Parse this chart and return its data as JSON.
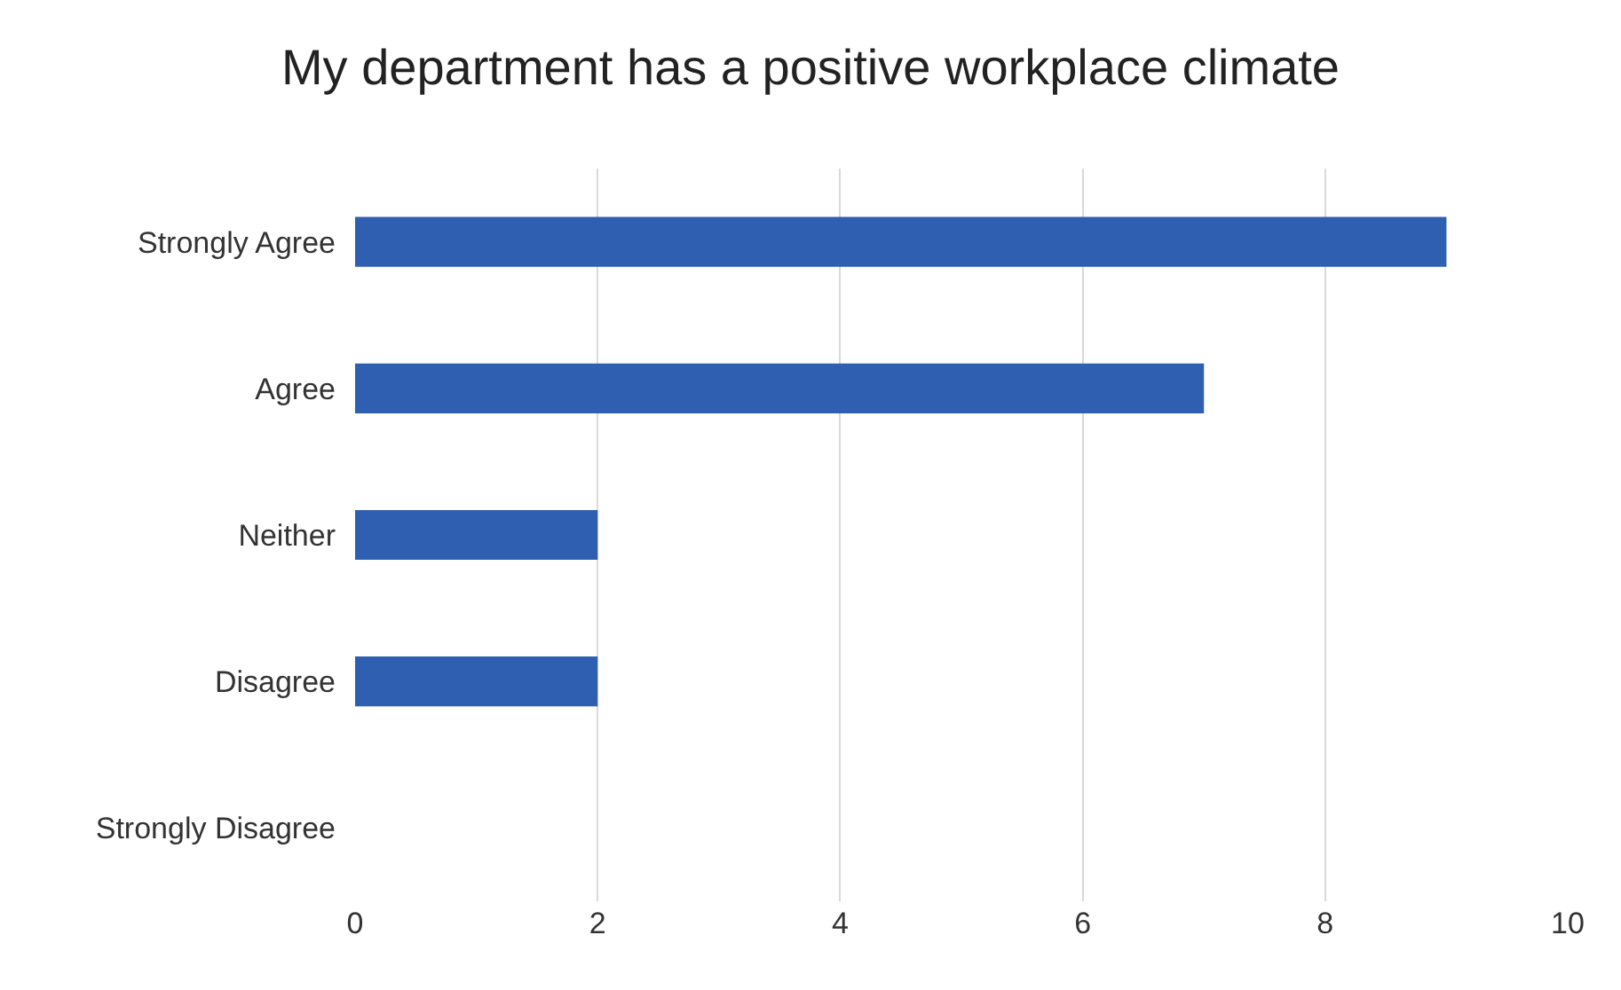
{
  "chart_data": {
    "type": "bar",
    "orientation": "horizontal",
    "title": "My department has a positive workplace climate",
    "categories": [
      "Strongly Agree",
      "Agree",
      "Neither",
      "Disagree",
      "Strongly Disagree"
    ],
    "values": [
      9,
      7,
      2,
      2,
      0
    ],
    "color": "#2e5fb0",
    "xlim": [
      0,
      10
    ],
    "xticks": [
      0,
      2,
      4,
      6,
      8,
      10
    ],
    "grid": "x"
  }
}
